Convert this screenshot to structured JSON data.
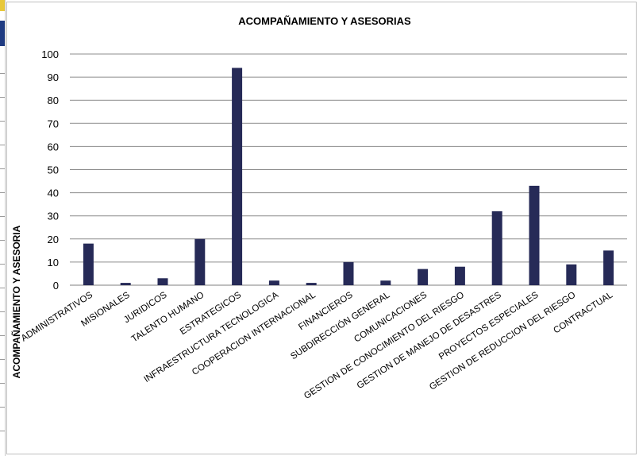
{
  "chart_data": {
    "type": "bar",
    "title": "ACOMPAÑAMIENTO Y ASESORIAS",
    "ylabel": "ACOMPAÑAMIENTO  Y ASESORIA",
    "xlabel": "",
    "ylim": [
      0,
      100
    ],
    "yticks": [
      0,
      10,
      20,
      30,
      40,
      50,
      60,
      70,
      80,
      90,
      100
    ],
    "grid": true,
    "legend": "none",
    "bar_color": "#262a57",
    "categories": [
      "ADMINISTRATIVOS",
      "MISIONALES",
      "JURIDICOS",
      "TALENTO HUMANO",
      "ESTRATEGICOS",
      "INFRAESTRUCTURA TECNOLOGICA",
      "COOPERACION INTERNACIONAL",
      "FINANCIEROS",
      "SUBDIRECCIÓN GENERAL",
      "COMUNICACIONES",
      "GESTION DE CONOCIMIENTO DEL RIESGO",
      "GESTION DE MANEJO DE DESASTRES",
      "PROYECTOS ESPECIALES",
      "GESTION DE REDUCCION DEL RIESGO",
      "CONTRACTUAL"
    ],
    "values": [
      18,
      1,
      3,
      20,
      94,
      2,
      1,
      10,
      2,
      7,
      8,
      32,
      43,
      9,
      15
    ]
  }
}
